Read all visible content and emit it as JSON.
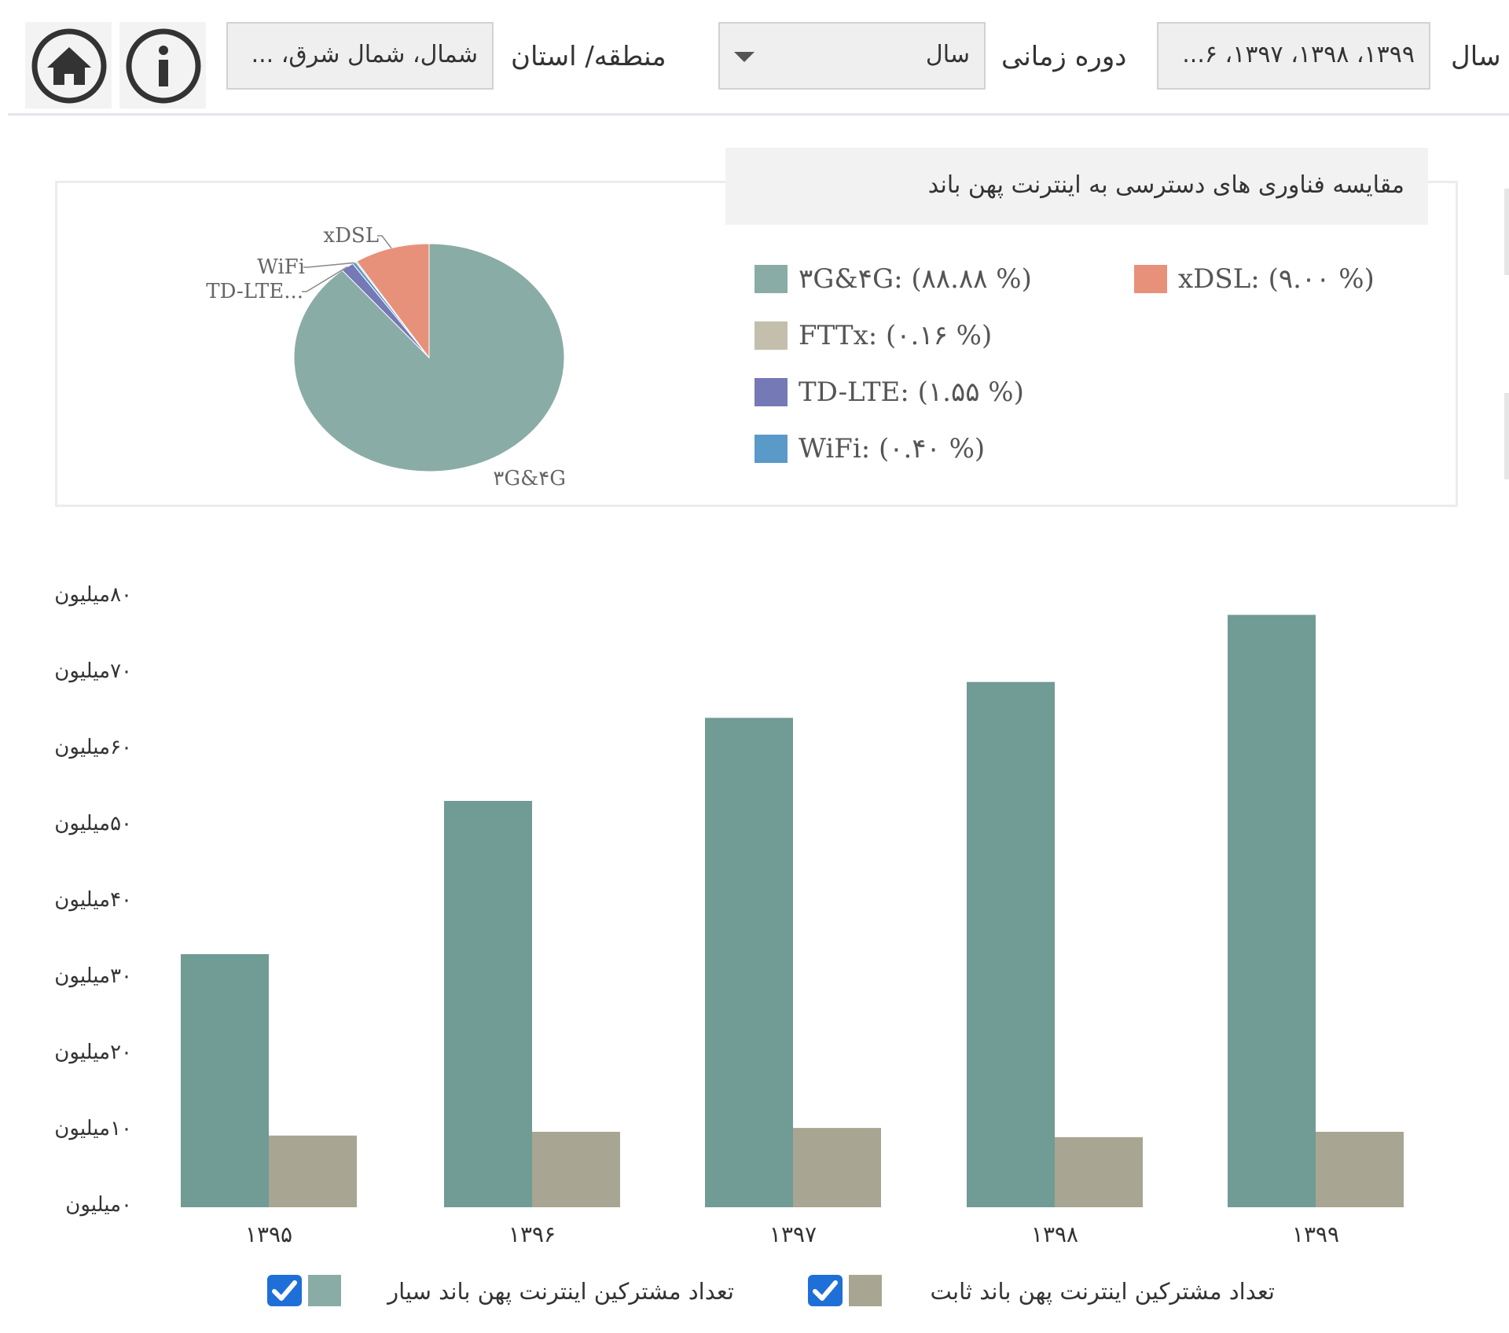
{
  "toolbar": {
    "year_label": "سال",
    "year_value": "۱۳۹۹، ۱۳۹۸، ۱۳۹۷، ۶...",
    "period_label": "دوره زمانی",
    "period_value": "سال",
    "region_label": "منطقه/ استان",
    "region_value": "شمال، شمال شرق، ...",
    "home_icon": "home-icon",
    "info_icon": "info-icon"
  },
  "chart_data": [
    {
      "type": "pie",
      "title": "مقایسه  فناوری های دسترسی  به اینترنت پهن باند",
      "slices": [
        {
          "name": "۳G&۴G",
          "percent": 88.88,
          "percent_text": "(۸۸.۸۸ %)",
          "color": "#8aaca6",
          "pie_label": "۳G&۴G"
        },
        {
          "name": "xDSL",
          "percent": 9.0,
          "percent_text": "(۹.۰۰ %)",
          "color": "#e8917a",
          "pie_label": "xDSL"
        },
        {
          "name": "FTTx",
          "percent": 0.16,
          "percent_text": "(۰.۱۶ %)",
          "color": "#c3bfac",
          "pie_label": ""
        },
        {
          "name": "TD-LTE",
          "percent": 1.55,
          "percent_text": "(۱.۵۵ %)",
          "color": "#7579b5",
          "pie_label": "TD-LTE..."
        },
        {
          "name": "WiFi",
          "percent": 0.4,
          "percent_text": "(۰.۴۰ %)",
          "color": "#5a9ac8",
          "pie_label": "WiFi"
        }
      ]
    },
    {
      "type": "bar",
      "categories": [
        "۱۳۹۵",
        "۱۳۹۶",
        "۱۳۹۷",
        "۱۳۹۸",
        "۱۳۹۹"
      ],
      "series": [
        {
          "name": "تعداد مشترکین اینترنت پهن باند سیار",
          "values": [
            33.2,
            53.3,
            64.2,
            68.9,
            77.7
          ],
          "color": "#719b95"
        },
        {
          "name": "تعداد مشترکین اینترنت پهن باند ثابت",
          "values": [
            9.4,
            9.9,
            10.4,
            9.2,
            9.9
          ],
          "color": "#a8a592"
        }
      ],
      "ylim": [
        0,
        80
      ],
      "yticks": [
        {
          "value": 0,
          "label": "۰میلیون"
        },
        {
          "value": 10,
          "label": "۱۰میلیون"
        },
        {
          "value": 20,
          "label": "۲۰میلیون"
        },
        {
          "value": 30,
          "label": "۳۰میلیون"
        },
        {
          "value": 40,
          "label": "۴۰میلیون"
        },
        {
          "value": 50,
          "label": "۵۰میلیون"
        },
        {
          "value": 60,
          "label": "۶۰میلیون"
        },
        {
          "value": 70,
          "label": "۷۰میلیون"
        },
        {
          "value": 80,
          "label": "۸۰میلیون"
        }
      ],
      "legend_position": "bottom",
      "legend_checked": [
        true,
        true
      ]
    }
  ]
}
